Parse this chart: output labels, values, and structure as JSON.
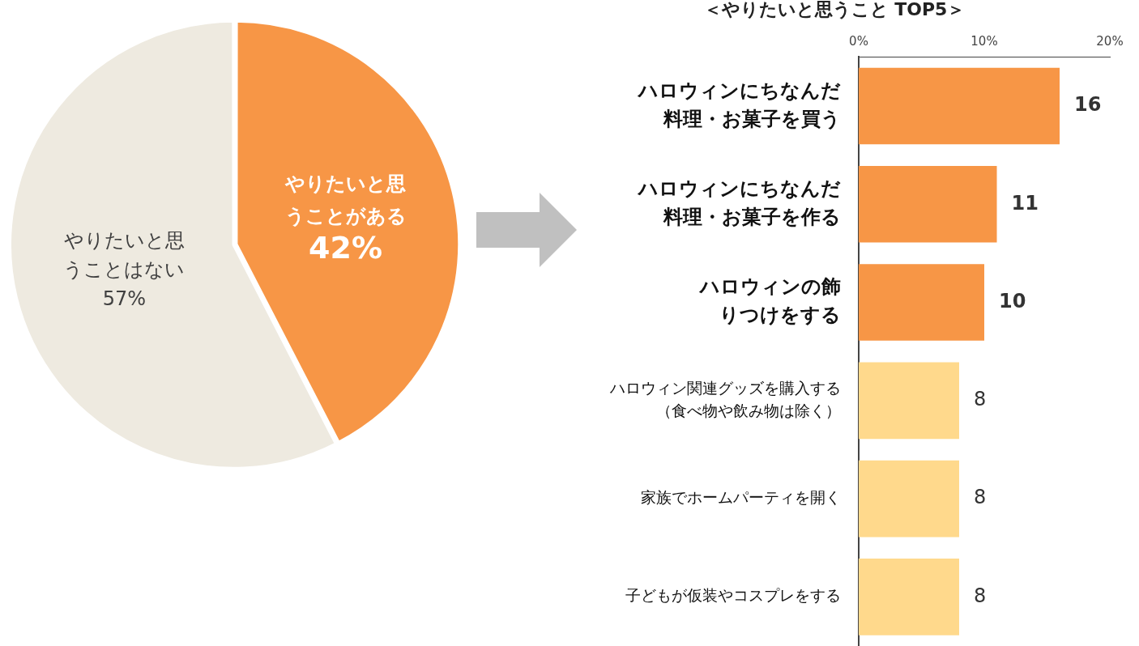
{
  "chart_data": [
    {
      "type": "pie",
      "categories": [
        "やりたいと思うことがある",
        "やりたいと思うことはない"
      ],
      "values": [
        42,
        57
      ],
      "colors": [
        "#f79646",
        "#eeeae0"
      ],
      "value_labels": [
        "42%",
        "57%"
      ],
      "legend": false
    },
    {
      "type": "bar",
      "orientation": "horizontal",
      "title": "＜やりたいと思うこと TOP5＞",
      "categories": [
        "ハロウィンにちなんだ料理・お菓子を買う",
        "ハロウィンにちなんだ料理・お菓子を作る",
        "ハロウィンの飾りつけをする",
        "ハロウィン関連グッズを購入する（食べ物や飲み物は除く）",
        "家族でホームパーティを開く",
        "子どもが仮装やコスプレをする"
      ],
      "values": [
        16,
        11,
        10,
        8,
        8,
        8
      ],
      "colors": [
        "#f79646",
        "#f79646",
        "#f79646",
        "#ffd98c",
        "#ffd98c",
        "#ffd98c"
      ],
      "xlim": [
        0,
        20
      ],
      "xticks": [
        {
          "value": 0,
          "label": "0%"
        },
        {
          "value": 10,
          "label": "10%"
        },
        {
          "value": 20,
          "label": "20%"
        }
      ],
      "data_labels": true,
      "grid": false,
      "legend": false
    }
  ]
}
